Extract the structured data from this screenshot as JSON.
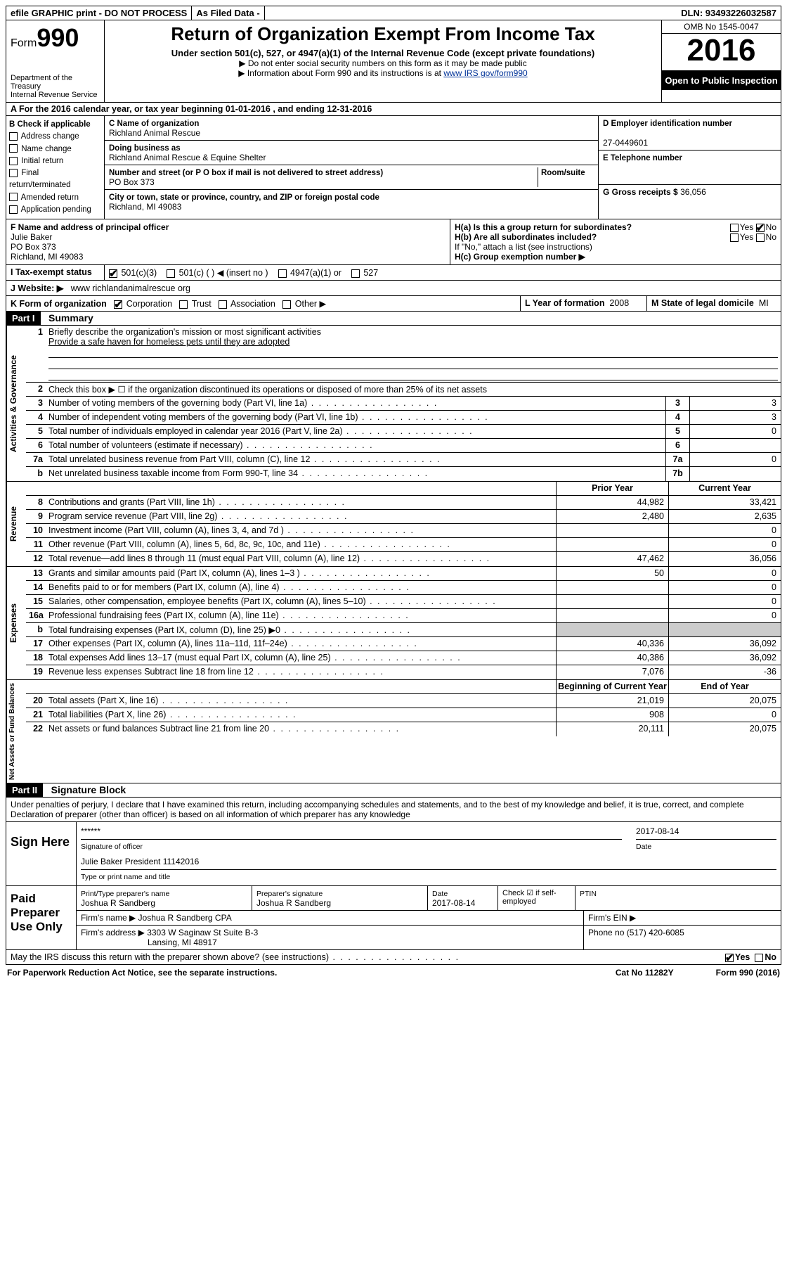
{
  "topbar": {
    "efile": "efile GRAPHIC print - DO NOT PROCESS",
    "asfiled": "As Filed Data -",
    "dln": "DLN: 93493226032587"
  },
  "header": {
    "form_prefix": "Form",
    "form_num": "990",
    "dept": "Department of the Treasury\nInternal Revenue Service",
    "title": "Return of Organization Exempt From Income Tax",
    "subtitle": "Under section 501(c), 527, or 4947(a)(1) of the Internal Revenue Code (except private foundations)",
    "note1": "▶ Do not enter social security numbers on this form as it may be made public",
    "note2_pre": "▶ Information about Form 990 and its instructions is at ",
    "note2_link": "www IRS gov/form990",
    "omb": "OMB No 1545-0047",
    "year": "2016",
    "inspect": "Open to Public Inspection"
  },
  "rowA": "A  For the 2016 calendar year, or tax year beginning 01-01-2016   , and ending 12-31-2016",
  "colB": {
    "title": "B Check if applicable",
    "items": [
      "Address change",
      "Name change",
      "Initial return",
      "Final return/terminated",
      "Amended return",
      "Application pending"
    ]
  },
  "colC": {
    "name_lbl": "C Name of organization",
    "name": "Richland Animal Rescue",
    "dba_lbl": "Doing business as",
    "dba": "Richland Animal Rescue & Equine Shelter",
    "addr_lbl": "Number and street (or P O  box if mail is not delivered to street address)",
    "room_lbl": "Room/suite",
    "addr": "PO Box 373",
    "city_lbl": "City or town, state or province, country, and ZIP or foreign postal code",
    "city": "Richland, MI  49083"
  },
  "colD": {
    "ein_lbl": "D Employer identification number",
    "ein": "27-0449601",
    "tel_lbl": "E Telephone number",
    "gross_lbl": "G Gross receipts $",
    "gross": "36,056"
  },
  "rowF": {
    "lbl": "F  Name and address of principal officer",
    "name": "Julie Baker",
    "addr1": "PO Box 373",
    "addr2": "Richland, MI  49083"
  },
  "rowH": {
    "ha": "H(a)  Is this a group return for subordinates?",
    "hb": "H(b)  Are all subordinates included?",
    "hb_note": "If \"No,\" attach a list  (see instructions)",
    "hc": "H(c)  Group exemption number ▶"
  },
  "rowI": {
    "lbl": "I  Tax-exempt status",
    "opts": [
      "501(c)(3)",
      "501(c) (  ) ◀ (insert no )",
      "4947(a)(1) or",
      "527"
    ]
  },
  "rowJ": {
    "lbl": "J  Website: ▶",
    "val": "www richlandanimalrescue org"
  },
  "rowK": {
    "lbl": "K Form of organization",
    "opts": [
      "Corporation",
      "Trust",
      "Association",
      "Other ▶"
    ]
  },
  "rowL": {
    "lbl": "L Year of formation",
    "val": "2008"
  },
  "rowM": {
    "lbl": "M State of legal domicile",
    "val": "MI"
  },
  "part1": {
    "hdr": "Part I",
    "title": "Summary"
  },
  "gov": {
    "label": "Activities & Governance",
    "l1": "Briefly describe the organization's mission or most significant activities",
    "l1val": "Provide a safe haven for homeless pets until they are adopted",
    "l2": "Check this box ▶ ☐ if the organization discontinued its operations or disposed of more than 25% of its net assets",
    "rows": [
      {
        "n": "3",
        "t": "Number of voting members of the governing body (Part VI, line 1a)",
        "box": "3",
        "v": "3"
      },
      {
        "n": "4",
        "t": "Number of independent voting members of the governing body (Part VI, line 1b)",
        "box": "4",
        "v": "3"
      },
      {
        "n": "5",
        "t": "Total number of individuals employed in calendar year 2016 (Part V, line 2a)",
        "box": "5",
        "v": "0"
      },
      {
        "n": "6",
        "t": "Total number of volunteers (estimate if necessary)",
        "box": "6",
        "v": ""
      },
      {
        "n": "7a",
        "t": "Total unrelated business revenue from Part VIII, column (C), line 12",
        "box": "7a",
        "v": "0"
      },
      {
        "n": "b",
        "t": "Net unrelated business taxable income from Form 990-T, line 34",
        "box": "7b",
        "v": ""
      }
    ]
  },
  "rev": {
    "label": "Revenue",
    "hdr_prior": "Prior Year",
    "hdr_curr": "Current Year",
    "rows": [
      {
        "n": "8",
        "t": "Contributions and grants (Part VIII, line 1h)",
        "p": "44,982",
        "c": "33,421"
      },
      {
        "n": "9",
        "t": "Program service revenue (Part VIII, line 2g)",
        "p": "2,480",
        "c": "2,635"
      },
      {
        "n": "10",
        "t": "Investment income (Part VIII, column (A), lines 3, 4, and 7d )",
        "p": "",
        "c": "0"
      },
      {
        "n": "11",
        "t": "Other revenue (Part VIII, column (A), lines 5, 6d, 8c, 9c, 10c, and 11e)",
        "p": "",
        "c": "0"
      },
      {
        "n": "12",
        "t": "Total revenue—add lines 8 through 11 (must equal Part VIII, column (A), line 12)",
        "p": "47,462",
        "c": "36,056"
      }
    ]
  },
  "exp": {
    "label": "Expenses",
    "rows": [
      {
        "n": "13",
        "t": "Grants and similar amounts paid (Part IX, column (A), lines 1–3 )",
        "p": "50",
        "c": "0"
      },
      {
        "n": "14",
        "t": "Benefits paid to or for members (Part IX, column (A), line 4)",
        "p": "",
        "c": "0"
      },
      {
        "n": "15",
        "t": "Salaries, other compensation, employee benefits (Part IX, column (A), lines 5–10)",
        "p": "",
        "c": "0"
      },
      {
        "n": "16a",
        "t": "Professional fundraising fees (Part IX, column (A), line 11e)",
        "p": "",
        "c": "0"
      },
      {
        "n": "b",
        "t": "Total fundraising expenses (Part IX, column (D), line 25) ▶0",
        "p": "shade",
        "c": "shade"
      },
      {
        "n": "17",
        "t": "Other expenses (Part IX, column (A), lines 11a–11d, 11f–24e)",
        "p": "40,336",
        "c": "36,092"
      },
      {
        "n": "18",
        "t": "Total expenses  Add lines 13–17 (must equal Part IX, column (A), line 25)",
        "p": "40,386",
        "c": "36,092"
      },
      {
        "n": "19",
        "t": "Revenue less expenses  Subtract line 18 from line 12",
        "p": "7,076",
        "c": "-36"
      }
    ]
  },
  "net": {
    "label": "Net Assets or Fund Balances",
    "hdr_beg": "Beginning of Current Year",
    "hdr_end": "End of Year",
    "rows": [
      {
        "n": "20",
        "t": "Total assets (Part X, line 16)",
        "p": "21,019",
        "c": "20,075"
      },
      {
        "n": "21",
        "t": "Total liabilities (Part X, line 26)",
        "p": "908",
        "c": "0"
      },
      {
        "n": "22",
        "t": "Net assets or fund balances  Subtract line 21 from line 20",
        "p": "20,111",
        "c": "20,075"
      }
    ]
  },
  "part2": {
    "hdr": "Part II",
    "title": "Signature Block"
  },
  "perjury": "Under penalties of perjury, I declare that I have examined this return, including accompanying schedules and statements, and to the best of my knowledge and belief, it is true, correct, and complete  Declaration of preparer (other than officer) is based on all information of which preparer has any knowledge",
  "sign": {
    "label": "Sign Here",
    "stars": "******",
    "sig_lbl": "Signature of officer",
    "date": "2017-08-14",
    "date_lbl": "Date",
    "name": "Julie Baker President 11142016",
    "name_lbl": "Type or print name and title"
  },
  "prep": {
    "label": "Paid Preparer Use Only",
    "r1": {
      "c1_lbl": "Print/Type preparer's name",
      "c1": "Joshua R Sandberg",
      "c2_lbl": "Preparer's signature",
      "c2": "Joshua R Sandberg",
      "c3_lbl": "Date",
      "c3": "2017-08-14",
      "c4": "Check ☑ if self-employed",
      "c5_lbl": "PTIN"
    },
    "r2": {
      "c1": "Firm's name    ▶ Joshua R Sandberg CPA",
      "c2": "Firm's EIN ▶"
    },
    "r3": {
      "c1": "Firm's address ▶ 3303 W Saginaw St Suite B-3",
      "c2": "Phone no  (517) 420-6085"
    },
    "r3b": "Lansing, MI  48917"
  },
  "discuss": "May the IRS discuss this return with the preparer shown above? (see instructions)",
  "footer": {
    "l": "For Paperwork Reduction Act Notice, see the separate instructions.",
    "m": "Cat  No  11282Y",
    "r": "Form 990 (2016)"
  }
}
